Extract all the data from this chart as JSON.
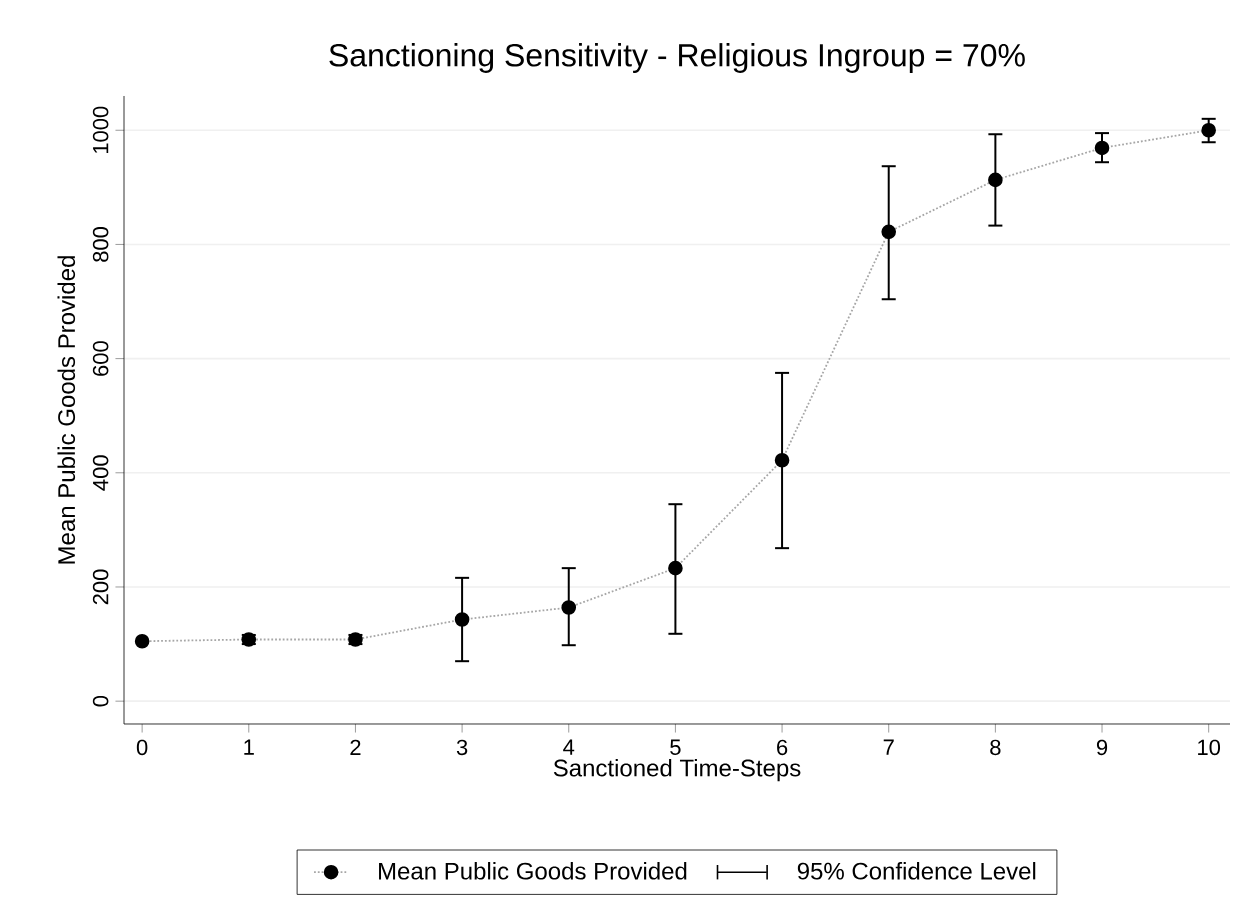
{
  "chart_data": {
    "type": "line",
    "title": "Sanctioning Sensitivity - Religious Ingroup = 70%",
    "xlabel": "Sanctioned Time-Steps",
    "ylabel": "Mean Public Goods Provided",
    "x": [
      0,
      1,
      2,
      3,
      4,
      5,
      6,
      7,
      8,
      9,
      10
    ],
    "series": [
      {
        "name": "Mean Public Goods Provided",
        "color": "#000000",
        "values": [
          105,
          108,
          108,
          143,
          164,
          233,
          422,
          822,
          913,
          969,
          1000
        ],
        "errors": [
          null,
          [
            100,
            116
          ],
          [
            100,
            116
          ],
          [
            70,
            216
          ],
          [
            98,
            233
          ],
          [
            118,
            345
          ],
          [
            268,
            575
          ],
          [
            704,
            937
          ],
          [
            833,
            993
          ],
          [
            944,
            995
          ],
          [
            979,
            1020
          ]
        ]
      }
    ],
    "annotations": [
      "95% Confidence Level"
    ],
    "xlim": [
      -0.17,
      10.2
    ],
    "ylim": [
      -40,
      1060
    ],
    "xticks": [
      0,
      1,
      2,
      3,
      4,
      5,
      6,
      7,
      8,
      9,
      10
    ],
    "yticks": [
      0,
      200,
      400,
      600,
      800,
      1000
    ],
    "grid": "y",
    "legend": "bottom",
    "marker": "circle",
    "line_style": "dotted"
  }
}
